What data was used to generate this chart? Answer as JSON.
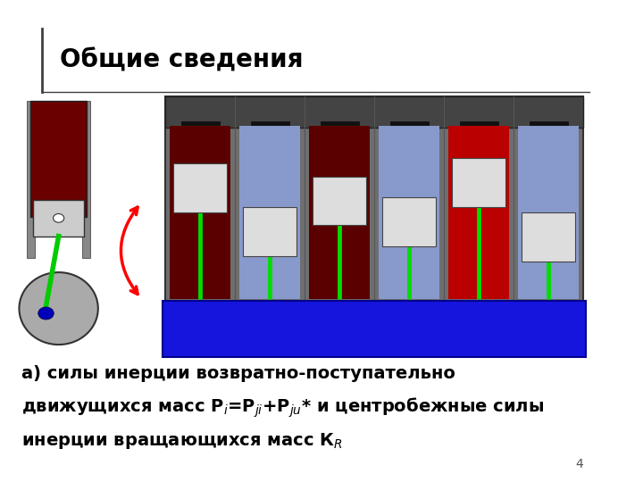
{
  "title": "Общие сведения",
  "title_fontsize": 20,
  "title_fontweight": "bold",
  "background_color": "#ffffff",
  "title_bar_color": "#404040",
  "page_number": "4",
  "text_line1": "а) силы инерции возвратно-поступательно",
  "text_line2": "движущихся масс P$_i$=P$_{ji}$+P$_{ju}$* и центробежные силы",
  "text_line3": "инерции вращающихся масс К$_R$",
  "text_fontsize": 14,
  "text_fontweight": "bold"
}
